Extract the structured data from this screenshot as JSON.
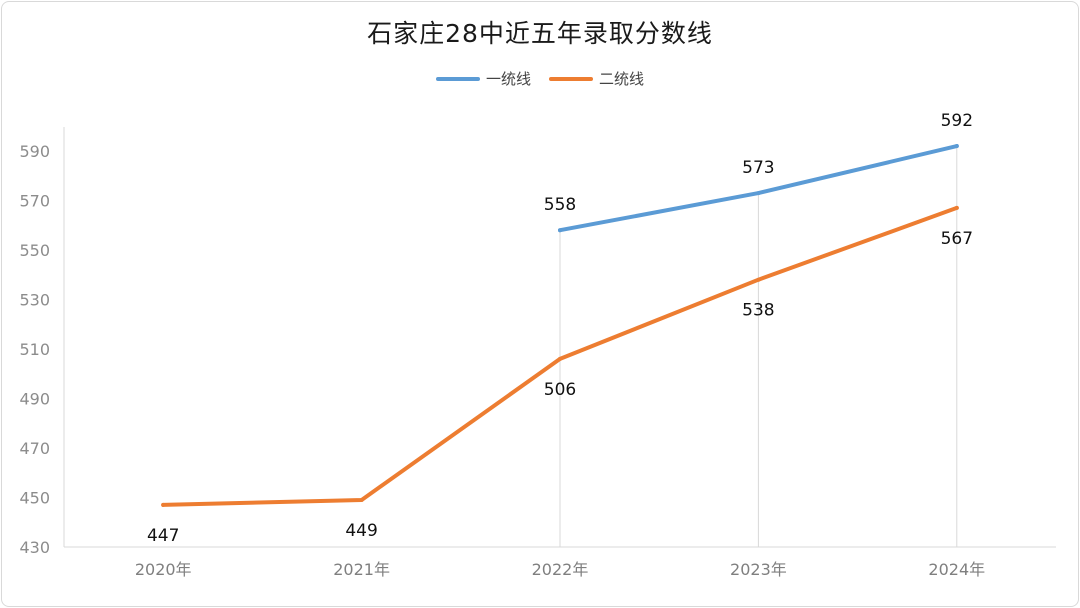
{
  "colors": {
    "first_line": "#5b9bd5",
    "second_line": "#ed7d31"
  },
  "chart_data": {
    "type": "line",
    "title": "石家庄28中近五年录取分数线",
    "xlabel": "",
    "ylabel": "",
    "categories": [
      "2020年",
      "2021年",
      "2022年",
      "2023年",
      "2024年"
    ],
    "series": [
      {
        "name": "一统线",
        "values": [
          null,
          null,
          558,
          573,
          592
        ]
      },
      {
        "name": "二统线",
        "values": [
          447,
          449,
          506,
          538,
          567
        ]
      }
    ],
    "ylim": [
      430,
      590
    ],
    "yticks": [
      430,
      450,
      470,
      490,
      510,
      530,
      550,
      570,
      590
    ],
    "legend_position": "top-center",
    "grid": false
  }
}
